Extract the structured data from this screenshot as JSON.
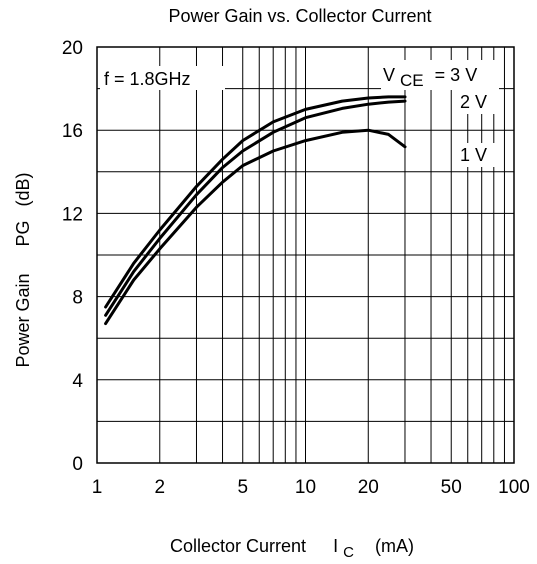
{
  "chart_data": {
    "type": "line",
    "title": "Power Gain vs. Collector Current",
    "xlabel": {
      "text": "Collector Current",
      "symbol": "I",
      "symbol_sub": "C",
      "unit": "(mA)"
    },
    "ylabel": {
      "text": "Power Gain",
      "symbol": "PG",
      "unit": "(dB)"
    },
    "xscale": "log",
    "xlim": [
      1,
      100
    ],
    "ylim": [
      0,
      20
    ],
    "xticks": [
      1,
      2,
      5,
      10,
      20,
      50,
      100
    ],
    "xtick_labels": [
      "1",
      "2",
      "5",
      "10",
      "20",
      "50",
      "100"
    ],
    "yticks": [
      0,
      4,
      8,
      12,
      16,
      20
    ],
    "ytick_labels": [
      "0",
      "4",
      "8",
      "12",
      "16",
      "20"
    ],
    "grid": true,
    "annotations": {
      "condition": "f = 1.8GHz",
      "vce_symbol": "V",
      "vce_sub": "CE"
    },
    "series": [
      {
        "name": "= 3 V",
        "color": "#000000",
        "x": [
          1.1,
          1.5,
          2,
          3,
          4,
          5,
          7,
          10,
          15,
          20,
          25,
          30
        ],
        "y": [
          7.5,
          9.6,
          11.2,
          13.3,
          14.6,
          15.5,
          16.4,
          17.0,
          17.4,
          17.55,
          17.6,
          17.6
        ]
      },
      {
        "name": "2 V",
        "color": "#000000",
        "x": [
          1.1,
          1.5,
          2,
          3,
          4,
          5,
          7,
          10,
          15,
          20,
          25,
          30
        ],
        "y": [
          7.1,
          9.2,
          10.8,
          12.9,
          14.2,
          15.0,
          15.9,
          16.6,
          17.05,
          17.25,
          17.35,
          17.4
        ]
      },
      {
        "name": "1 V",
        "color": "#000000",
        "x": [
          1.1,
          1.5,
          2,
          3,
          4,
          5,
          7,
          10,
          15,
          20,
          25,
          30
        ],
        "y": [
          6.7,
          8.8,
          10.3,
          12.3,
          13.5,
          14.3,
          15.0,
          15.5,
          15.9,
          16.0,
          15.8,
          15.2
        ]
      }
    ]
  }
}
